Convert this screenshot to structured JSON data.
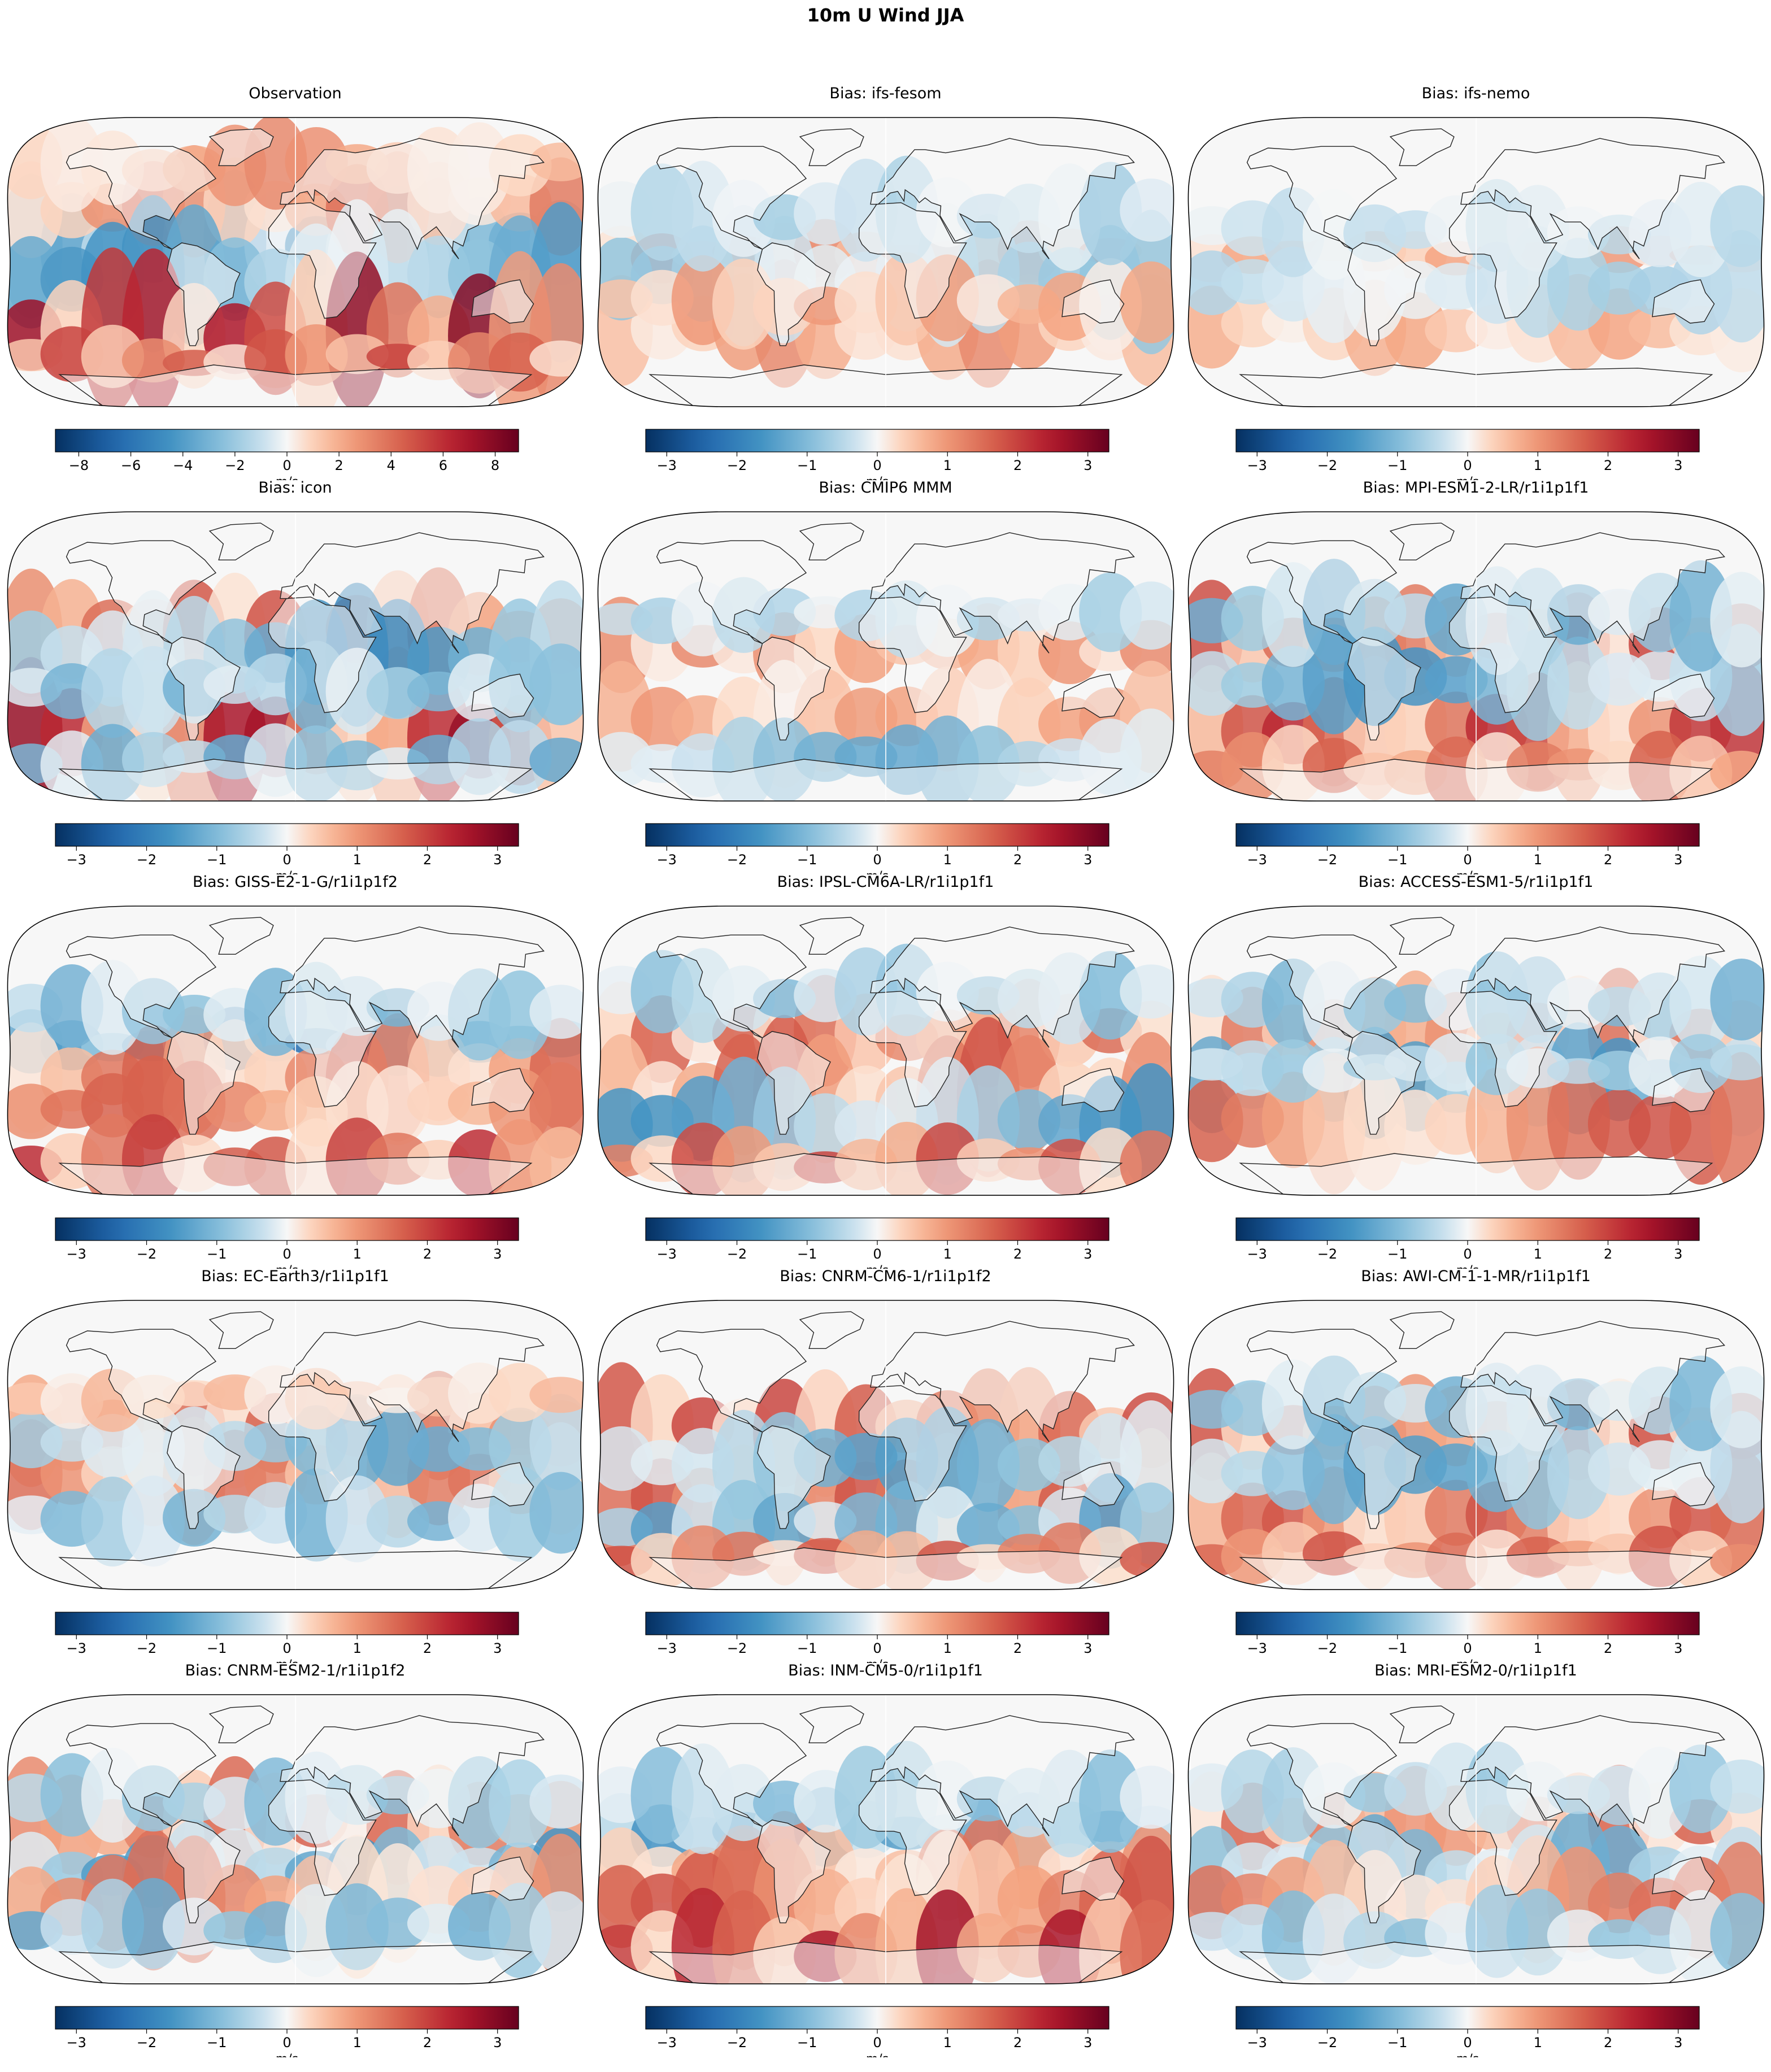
{
  "figure_title": "10m U Wind JJA",
  "chart_data": [
    {
      "type": "heatmap",
      "title": "Observation",
      "colormap": "RdBu_r",
      "colorbar_label": "m/s",
      "vmin": -8.9,
      "vmax": 8.9,
      "ticks": [
        "−8",
        "−6",
        "−4",
        "−2",
        "0",
        "2",
        "4",
        "6",
        "8"
      ],
      "tick_values": [
        -8,
        -6,
        -4,
        -2,
        0,
        2,
        4,
        6,
        8
      ],
      "projection": "Robinson",
      "coastlines": true
    },
    {
      "type": "heatmap",
      "title": "Bias: ifs-fesom",
      "colormap": "RdBu_r",
      "colorbar_label": "m/s",
      "vmin": -3.3,
      "vmax": 3.3,
      "ticks": [
        "−3",
        "−2",
        "−1",
        "0",
        "1",
        "2",
        "3"
      ],
      "tick_values": [
        -3,
        -2,
        -1,
        0,
        1,
        2,
        3
      ],
      "projection": "Robinson",
      "coastlines": true
    },
    {
      "type": "heatmap",
      "title": "Bias: ifs-nemo",
      "colormap": "RdBu_r",
      "colorbar_label": "m/s",
      "vmin": -3.3,
      "vmax": 3.3,
      "ticks": [
        "−3",
        "−2",
        "−1",
        "0",
        "1",
        "2",
        "3"
      ],
      "tick_values": [
        -3,
        -2,
        -1,
        0,
        1,
        2,
        3
      ],
      "projection": "Robinson",
      "coastlines": true
    },
    {
      "type": "heatmap",
      "title": "Bias: icon",
      "colormap": "RdBu_r",
      "colorbar_label": "m/s",
      "vmin": -3.3,
      "vmax": 3.3,
      "ticks": [
        "−3",
        "−2",
        "−1",
        "0",
        "1",
        "2",
        "3"
      ],
      "tick_values": [
        -3,
        -2,
        -1,
        0,
        1,
        2,
        3
      ],
      "projection": "Robinson",
      "coastlines": true
    },
    {
      "type": "heatmap",
      "title": "Bias: CMIP6 MMM",
      "colormap": "RdBu_r",
      "colorbar_label": "m/s",
      "vmin": -3.3,
      "vmax": 3.3,
      "ticks": [
        "−3",
        "−2",
        "−1",
        "0",
        "1",
        "2",
        "3"
      ],
      "tick_values": [
        -3,
        -2,
        -1,
        0,
        1,
        2,
        3
      ],
      "projection": "Robinson",
      "coastlines": true
    },
    {
      "type": "heatmap",
      "title": "Bias: MPI-ESM1-2-LR/r1i1p1f1",
      "colormap": "RdBu_r",
      "colorbar_label": "m/s",
      "vmin": -3.3,
      "vmax": 3.3,
      "ticks": [
        "−3",
        "−2",
        "−1",
        "0",
        "1",
        "2",
        "3"
      ],
      "tick_values": [
        -3,
        -2,
        -1,
        0,
        1,
        2,
        3
      ],
      "projection": "Robinson",
      "coastlines": true
    },
    {
      "type": "heatmap",
      "title": "Bias: GISS-E2-1-G/r1i1p1f2",
      "colormap": "RdBu_r",
      "colorbar_label": "m/s",
      "vmin": -3.3,
      "vmax": 3.3,
      "ticks": [
        "−3",
        "−2",
        "−1",
        "0",
        "1",
        "2",
        "3"
      ],
      "tick_values": [
        -3,
        -2,
        -1,
        0,
        1,
        2,
        3
      ],
      "projection": "Robinson",
      "coastlines": true
    },
    {
      "type": "heatmap",
      "title": "Bias: IPSL-CM6A-LR/r1i1p1f1",
      "colormap": "RdBu_r",
      "colorbar_label": "m/s",
      "vmin": -3.3,
      "vmax": 3.3,
      "ticks": [
        "−3",
        "−2",
        "−1",
        "0",
        "1",
        "2",
        "3"
      ],
      "tick_values": [
        -3,
        -2,
        -1,
        0,
        1,
        2,
        3
      ],
      "projection": "Robinson",
      "coastlines": true
    },
    {
      "type": "heatmap",
      "title": "Bias: ACCESS-ESM1-5/r1i1p1f1",
      "colormap": "RdBu_r",
      "colorbar_label": "m/s",
      "vmin": -3.3,
      "vmax": 3.3,
      "ticks": [
        "−3",
        "−2",
        "−1",
        "0",
        "1",
        "2",
        "3"
      ],
      "tick_values": [
        -3,
        -2,
        -1,
        0,
        1,
        2,
        3
      ],
      "projection": "Robinson",
      "coastlines": true
    },
    {
      "type": "heatmap",
      "title": "Bias: EC-Earth3/r1i1p1f1",
      "colormap": "RdBu_r",
      "colorbar_label": "m/s",
      "vmin": -3.3,
      "vmax": 3.3,
      "ticks": [
        "−3",
        "−2",
        "−1",
        "0",
        "1",
        "2",
        "3"
      ],
      "tick_values": [
        -3,
        -2,
        -1,
        0,
        1,
        2,
        3
      ],
      "projection": "Robinson",
      "coastlines": true
    },
    {
      "type": "heatmap",
      "title": "Bias: CNRM-CM6-1/r1i1p1f2",
      "colormap": "RdBu_r",
      "colorbar_label": "m/s",
      "vmin": -3.3,
      "vmax": 3.3,
      "ticks": [
        "−3",
        "−2",
        "−1",
        "0",
        "1",
        "2",
        "3"
      ],
      "tick_values": [
        -3,
        -2,
        -1,
        0,
        1,
        2,
        3
      ],
      "projection": "Robinson",
      "coastlines": true
    },
    {
      "type": "heatmap",
      "title": "Bias: AWI-CM-1-1-MR/r1i1p1f1",
      "colormap": "RdBu_r",
      "colorbar_label": "m/s",
      "vmin": -3.3,
      "vmax": 3.3,
      "ticks": [
        "−3",
        "−2",
        "−1",
        "0",
        "1",
        "2",
        "3"
      ],
      "tick_values": [
        -3,
        -2,
        -1,
        0,
        1,
        2,
        3
      ],
      "projection": "Robinson",
      "coastlines": true
    },
    {
      "type": "heatmap",
      "title": "Bias: CNRM-ESM2-1/r1i1p1f2",
      "colormap": "RdBu_r",
      "colorbar_label": "m/s",
      "vmin": -3.3,
      "vmax": 3.3,
      "ticks": [
        "−3",
        "−2",
        "−1",
        "0",
        "1",
        "2",
        "3"
      ],
      "tick_values": [
        -3,
        -2,
        -1,
        0,
        1,
        2,
        3
      ],
      "projection": "Robinson",
      "coastlines": true
    },
    {
      "type": "heatmap",
      "title": "Bias: INM-CM5-0/r1i1p1f1",
      "colormap": "RdBu_r",
      "colorbar_label": "m/s",
      "vmin": -3.3,
      "vmax": 3.3,
      "ticks": [
        "−3",
        "−2",
        "−1",
        "0",
        "1",
        "2",
        "3"
      ],
      "tick_values": [
        -3,
        -2,
        -1,
        0,
        1,
        2,
        3
      ],
      "projection": "Robinson",
      "coastlines": true
    },
    {
      "type": "heatmap",
      "title": "Bias: MRI-ESM2-0/r1i1p1f1",
      "colormap": "RdBu_r",
      "colorbar_label": "m/s",
      "vmin": -3.3,
      "vmax": 3.3,
      "ticks": [
        "−3",
        "−2",
        "−1",
        "0",
        "1",
        "2",
        "3"
      ],
      "tick_values": [
        -3,
        -2,
        -1,
        0,
        1,
        2,
        3
      ],
      "projection": "Robinson",
      "coastlines": true
    }
  ]
}
